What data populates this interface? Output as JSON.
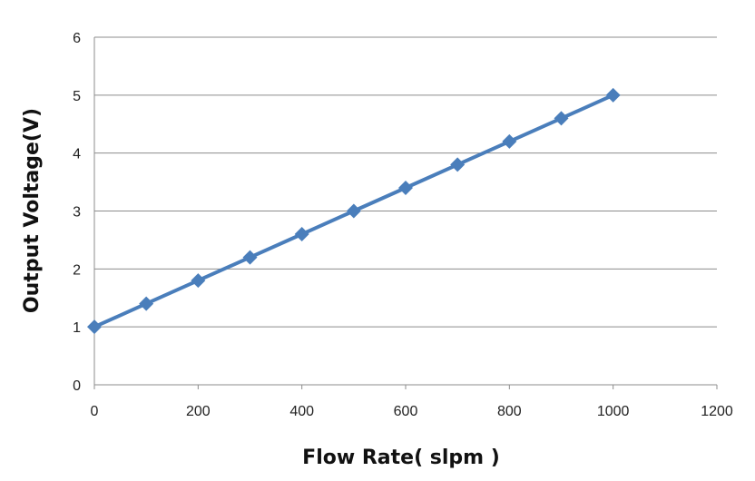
{
  "chart_data": {
    "type": "line",
    "title": "",
    "xlabel": "Flow Rate( slpm )",
    "ylabel": "Output Voltage(V)",
    "xlim": [
      0,
      1200
    ],
    "ylim": [
      0,
      6
    ],
    "x_ticks": [
      "0",
      "200",
      "400",
      "600",
      "800",
      "1000",
      "1200"
    ],
    "y_ticks": [
      "0",
      "1",
      "2",
      "3",
      "4",
      "5",
      "6"
    ],
    "grid": "horizontal",
    "legend": "none",
    "marker": "diamond",
    "color": "#4a7ebb",
    "series": [
      {
        "x": [
          0,
          100,
          200,
          300,
          400,
          500,
          600,
          700,
          800,
          900,
          1000
        ],
        "y": [
          1.0,
          1.4,
          1.8,
          2.2,
          2.6,
          3.0,
          3.4,
          3.8,
          4.2,
          4.6,
          5.0
        ]
      }
    ]
  }
}
